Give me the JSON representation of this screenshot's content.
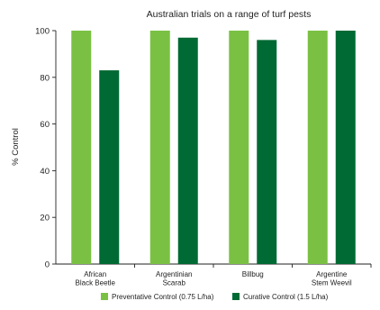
{
  "chart_data": {
    "type": "bar",
    "title": "Australian trials on a range of turf pests",
    "ylabel": "% Control",
    "xlabel": "",
    "ylim": [
      0,
      100
    ],
    "yticks": [
      0,
      20,
      40,
      60,
      80,
      100
    ],
    "grid": false,
    "legend_position": "bottom",
    "categories": [
      [
        "African",
        "Black Beetle"
      ],
      [
        "Argentinian",
        "Scarab"
      ],
      [
        "Billbug"
      ],
      [
        "Argentine",
        "Stem Weevil"
      ]
    ],
    "series": [
      {
        "name": "Preventative Control (0.75 L/ha)",
        "color": "#7ac143",
        "values": [
          100,
          100,
          100,
          100
        ]
      },
      {
        "name": "Curative Control (1.5 L/ha)",
        "color": "#006a34",
        "values": [
          83,
          97,
          96,
          100
        ]
      }
    ]
  }
}
